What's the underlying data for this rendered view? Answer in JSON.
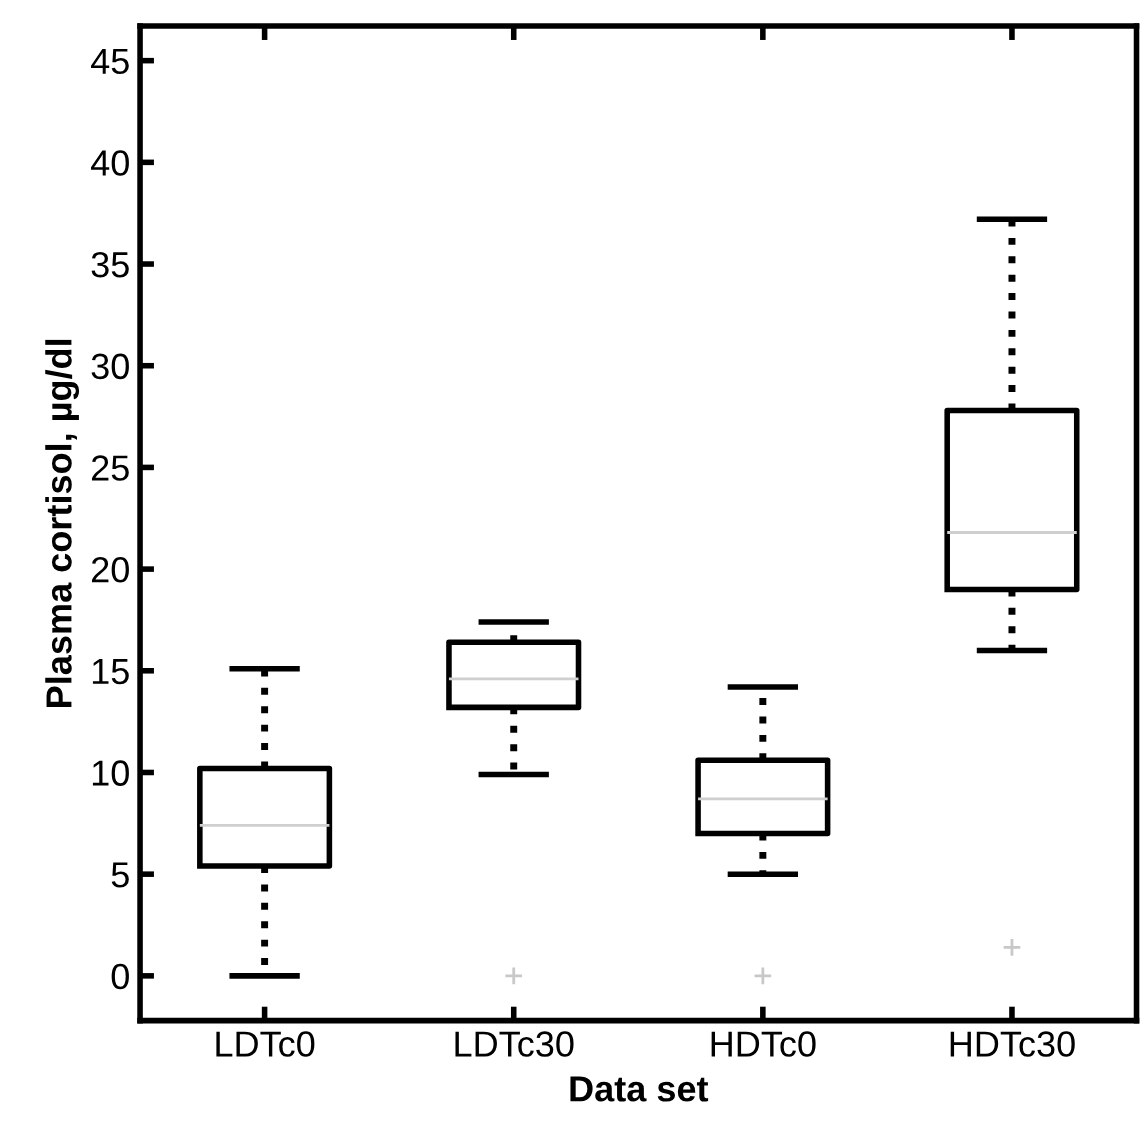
{
  "chart_data": {
    "type": "box",
    "xlabel": "Data set",
    "ylabel": "Plasma cortisol, µg/dl",
    "categories": [
      "LDTc0",
      "LDTc30",
      "HDTc0",
      "HDTc30"
    ],
    "boxes": [
      {
        "low": 0,
        "q1": 5.4,
        "median": 7.4,
        "q3": 10.2,
        "high": 15.1
      },
      {
        "low": 9.9,
        "q1": 13.2,
        "median": 14.6,
        "q3": 16.4,
        "high": 17.4,
        "outliers": [
          0
        ]
      },
      {
        "low": 5.0,
        "q1": 7.0,
        "median": 8.7,
        "q3": 10.6,
        "high": 14.2,
        "outliers": [
          0
        ]
      },
      {
        "low": 16.0,
        "q1": 19.0,
        "median": 21.8,
        "q3": 27.8,
        "high": 37.2,
        "outliers": [
          1.4
        ]
      }
    ],
    "ylim": [
      -2.2,
      46.7
    ],
    "yticks": [
      0,
      5,
      10,
      15,
      20,
      25,
      30,
      35,
      40,
      45
    ],
    "line_style": "dotted",
    "grid": false,
    "legend": false
  }
}
